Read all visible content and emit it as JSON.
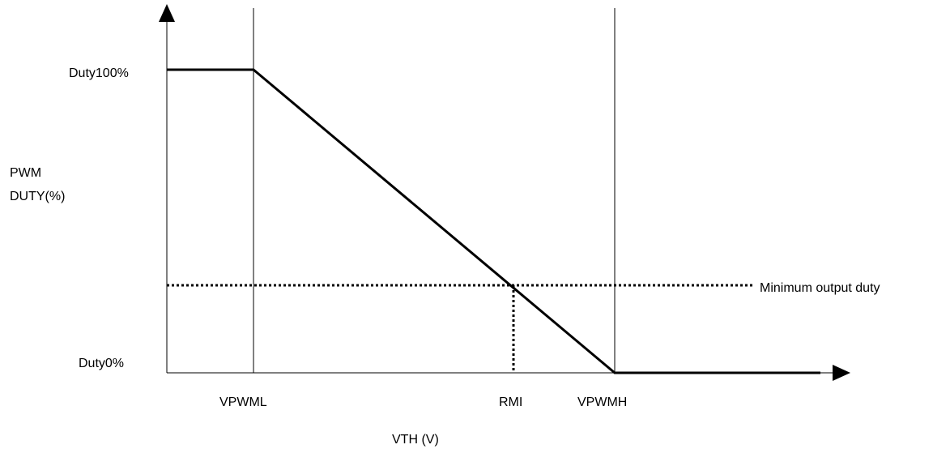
{
  "y_axis": {
    "label_line1": "PWM",
    "label_line2": "DUTY(%)",
    "top_tick": "Duty100%",
    "bottom_tick": "Duty0%"
  },
  "x_axis": {
    "label": "VTH (V)",
    "marker_low": "VPWML",
    "marker_mid": "RMI",
    "marker_high": "VPWMH"
  },
  "annotations": {
    "min_duty": "Minimum output duty"
  },
  "colors": {
    "line": "#000000",
    "background": "#ffffff"
  }
}
